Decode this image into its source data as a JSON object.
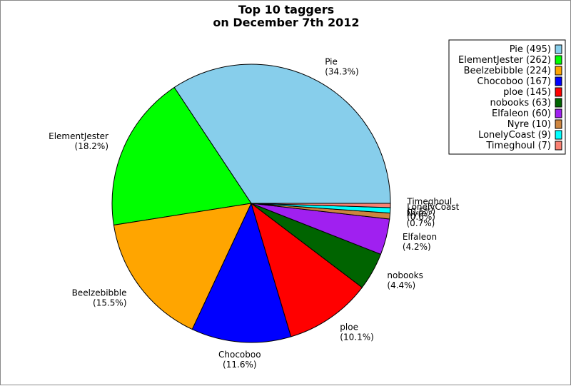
{
  "chart_data": {
    "type": "pie",
    "title": "Top 10 taggers\non December 7th 2012",
    "legend_position": "top-right",
    "start_angle_deg": 0,
    "direction": "counterclockwise",
    "slices": [
      {
        "label": "Pie",
        "value": 495,
        "percent": "34.3%",
        "legend": "Pie (495)",
        "color": "#87ceeb"
      },
      {
        "label": "ElementJester",
        "value": 262,
        "percent": "18.2%",
        "legend": "ElementJester (262)",
        "color": "#00ff00"
      },
      {
        "label": "Beelzebibble",
        "value": 224,
        "percent": "15.5%",
        "legend": "Beelzebibble (224)",
        "color": "#ffa500"
      },
      {
        "label": "Chocoboo",
        "value": 167,
        "percent": "11.6%",
        "legend": "Chocoboo (167)",
        "color": "#0000ff"
      },
      {
        "label": "ploe",
        "value": 145,
        "percent": "10.1%",
        "legend": "ploe (145)",
        "color": "#ff0000"
      },
      {
        "label": "nobooks",
        "value": 63,
        "percent": "4.4%",
        "legend": "nobooks (63)",
        "color": "#006400"
      },
      {
        "label": "Elfaleon",
        "value": 60,
        "percent": "4.2%",
        "legend": "Elfaleon (60)",
        "color": "#a020f0"
      },
      {
        "label": "Nyre",
        "value": 10,
        "percent": "0.7%",
        "legend": "Nyre (10)",
        "color": "#cd853f"
      },
      {
        "label": "LonelyCoast",
        "value": 9,
        "percent": "0.6%",
        "legend": "LonelyCoast (9)",
        "color": "#00ffff"
      },
      {
        "label": "Timeghoul",
        "value": 7,
        "percent": "0.5%",
        "legend": "Timeghoul (7)",
        "color": "#fa8072"
      }
    ]
  }
}
